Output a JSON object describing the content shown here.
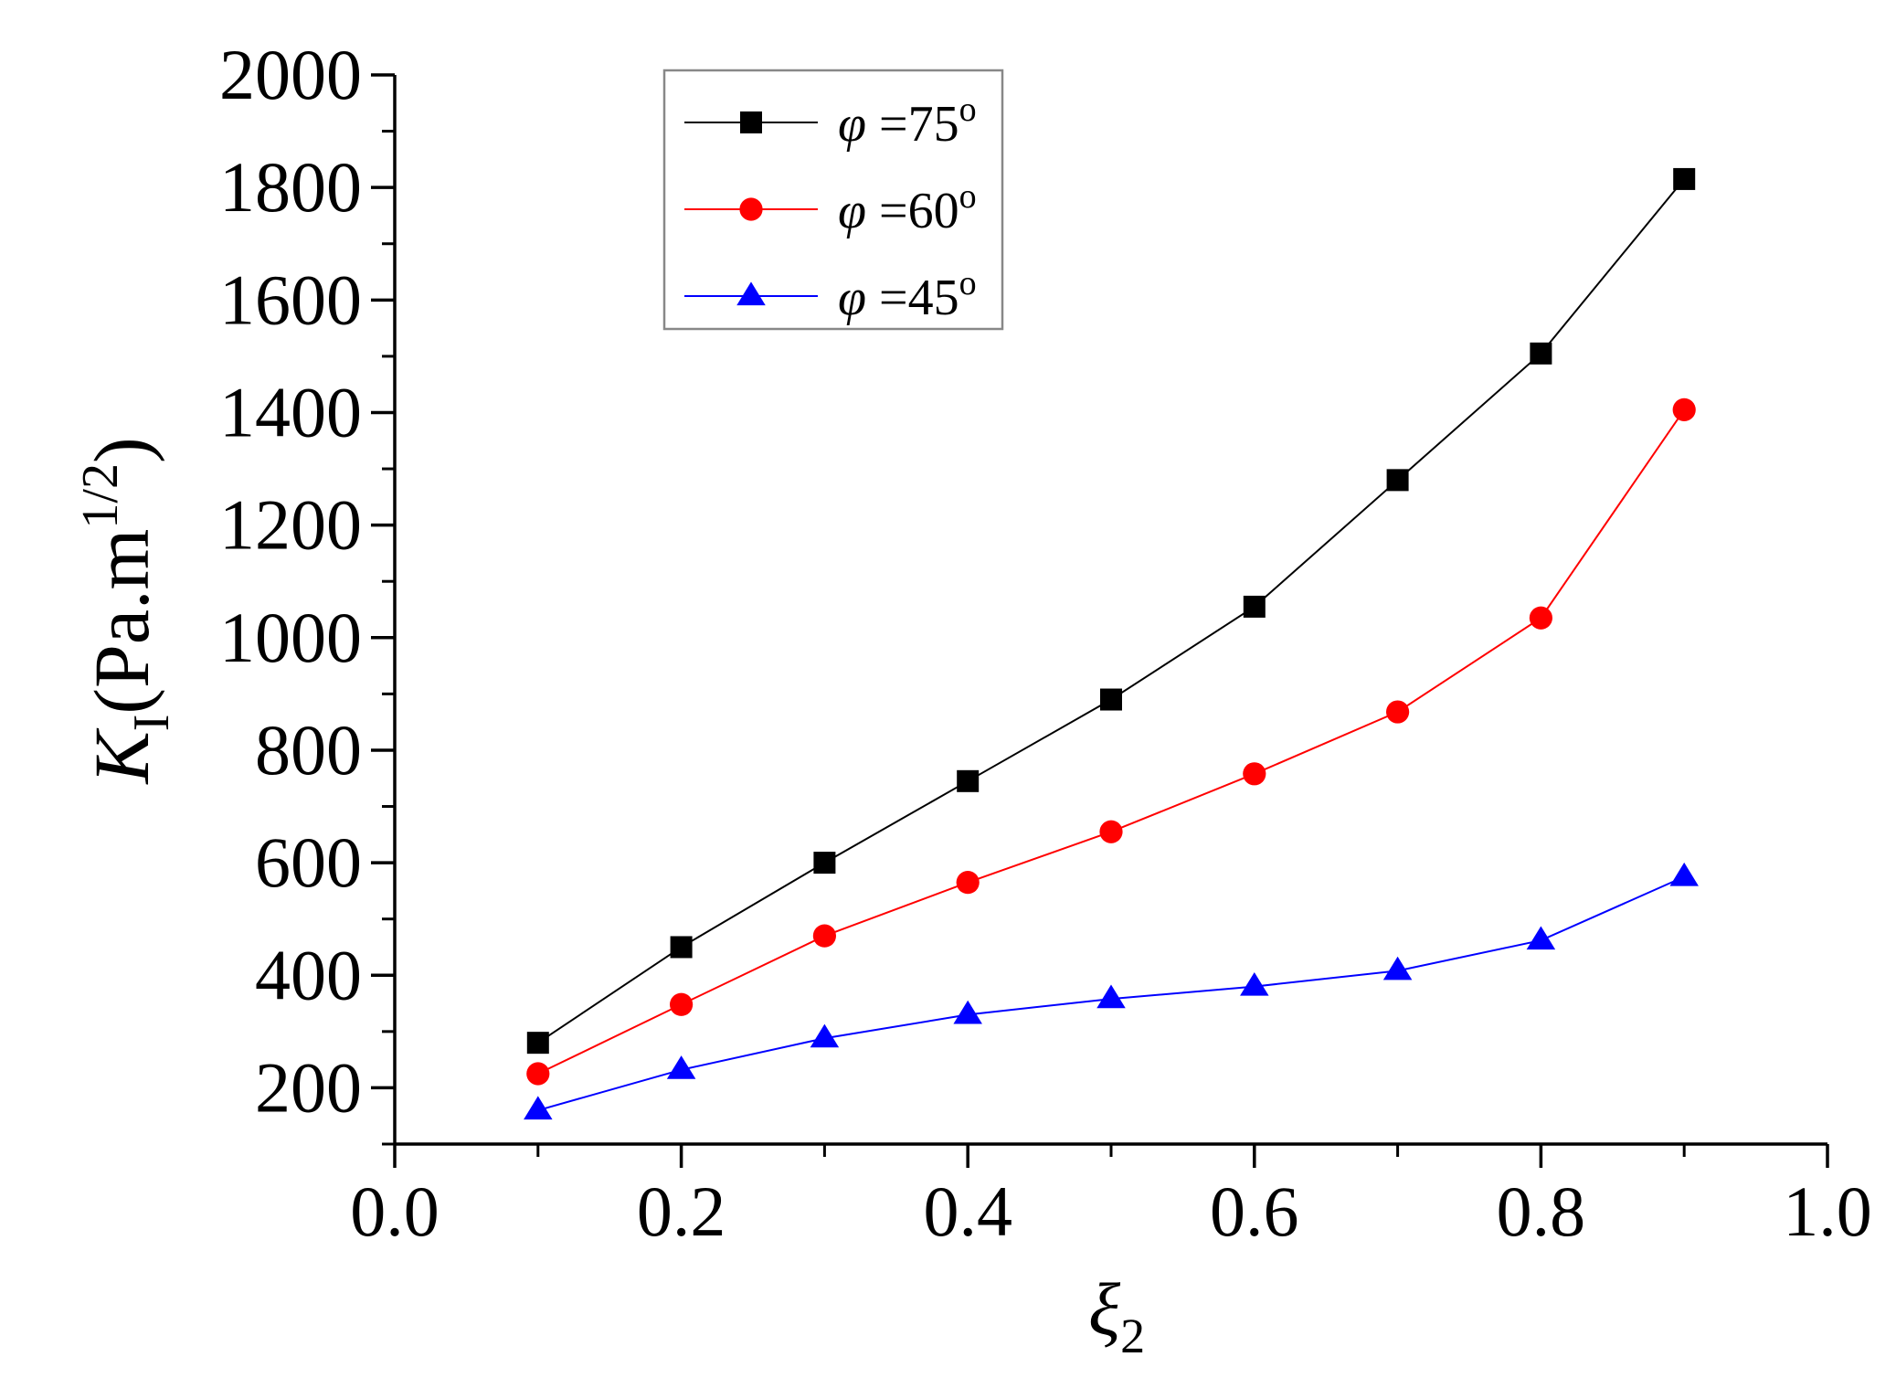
{
  "chart_data": {
    "type": "line",
    "title": "",
    "x": [
      0.1,
      0.2,
      0.3,
      0.4,
      0.5,
      0.6,
      0.7,
      0.8,
      0.9
    ],
    "xlim": [
      0.0,
      1.0
    ],
    "ylim": [
      100,
      2000
    ],
    "xticks": [
      0.0,
      0.2,
      0.4,
      0.6,
      0.8,
      1.0
    ],
    "xtick_labels": [
      "0.0",
      "0.2",
      "0.4",
      "0.6",
      "0.8",
      "1.0"
    ],
    "yticks": [
      200,
      400,
      600,
      800,
      1000,
      1200,
      1400,
      1600,
      1800,
      2000
    ],
    "ytick_labels": [
      "200",
      "400",
      "600",
      "800",
      "1000",
      "1200",
      "1400",
      "1600",
      "1800",
      "2000"
    ],
    "xlabel": {
      "symbol": "ξ",
      "subscript": "2"
    },
    "ylabel": {
      "symbol": "K",
      "subscript": "I",
      "unit_prefix": "(Pa.m",
      "unit_power": "1/2",
      "unit_suffix": ")"
    },
    "legend_position": "top-left",
    "series": [
      {
        "name": "φ =75°",
        "symbol": "φ",
        "eq": " =75",
        "deg": "o",
        "color": "#000000",
        "marker": "square",
        "values": [
          280,
          450,
          600,
          745,
          890,
          1055,
          1280,
          1505,
          1815
        ]
      },
      {
        "name": "φ =60°",
        "symbol": "φ",
        "eq": " =60",
        "deg": "o",
        "color": "#ff0000",
        "marker": "circle",
        "values": [
          225,
          348,
          470,
          565,
          655,
          758,
          868,
          1035,
          1405
        ]
      },
      {
        "name": "φ =45°",
        "symbol": "φ",
        "eq": " =45",
        "deg": "o",
        "color": "#0000ff",
        "marker": "triangle",
        "values": [
          160,
          232,
          288,
          330,
          358,
          380,
          408,
          462,
          575
        ]
      }
    ]
  }
}
